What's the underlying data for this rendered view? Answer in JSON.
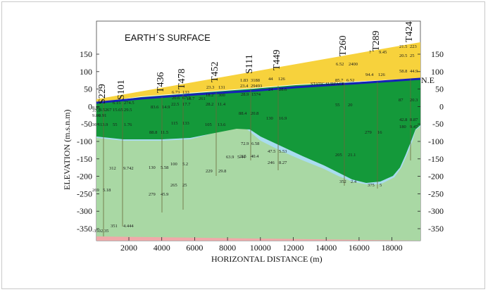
{
  "title": "EARTH´S SURFACE",
  "static_surface_label": "STATIC SURFACE",
  "ne_label": "N.E",
  "xlabel": "HORIZONTAL DISTANCE (m)",
  "ylabel": "ELEVATION (m.s.n.m)",
  "x_ticks": [
    "2000",
    "4000",
    "6000",
    "8000",
    "10000",
    "12000",
    "14000",
    "16000",
    "18000"
  ],
  "y_ticks": [
    "150",
    "100",
    "50",
    "0",
    "-50",
    "-100",
    "-150",
    "-200",
    "-250",
    "-300",
    "-350"
  ],
  "wells": [
    "S229",
    "S101",
    "T436",
    "T478",
    "T452",
    "S111",
    "T449",
    "T260",
    "T289",
    "T424"
  ],
  "colors": {
    "surface_yellow": "#f7d23c",
    "dark_green": "#14993a",
    "light_green": "#a9d8a4",
    "pink": "#f0a9a9",
    "light_blue": "#a9dcef",
    "static_line": "#1621b8"
  },
  "annotations": [
    "18.7",
    "261",
    "6.73",
    "133",
    "20.6",
    "67.3",
    "23.3",
    "131",
    "1.83",
    "3188",
    "23.4",
    "29493",
    "44",
    "126",
    "24",
    "28.6",
    "6.52",
    "2400",
    "7",
    "9.45",
    "21.5",
    "223",
    "20.5",
    "25",
    "94.4",
    "126",
    "58.8",
    "44.9",
    "85.7",
    "6.52",
    "18.2",
    "300",
    "28.9",
    "1574",
    "6.15",
    "274.5",
    "8.96",
    "37.0",
    "8.52",
    "67",
    "15.65",
    "29.5",
    "83.6",
    "14.9",
    "22.5",
    "17.7",
    "28.2",
    "11.4",
    "55",
    "20",
    "87",
    "20.3",
    "9.86",
    "0.91",
    "88.4",
    "20.8",
    "36",
    "113.9",
    "55",
    "1.76",
    "88.8",
    "11.5",
    "115",
    "133",
    "105",
    "13.6",
    "130",
    "16.9",
    "279",
    "16",
    "42.8",
    "8.87",
    "180",
    "9.47",
    "72.9",
    "6.58",
    "63.9",
    "5.44",
    "47.5",
    "5.53",
    "205",
    "21.1",
    "215",
    "40.4",
    "312",
    "9.742",
    "130",
    "5.58",
    "100",
    "5.2",
    "229",
    "29.8",
    "246",
    "8.27",
    "352",
    "2.4",
    "375",
    "5",
    "269",
    "5.18",
    "279",
    "45.9",
    "265",
    "25",
    "351",
    "4.444",
    "-350",
    "2.35"
  ]
}
